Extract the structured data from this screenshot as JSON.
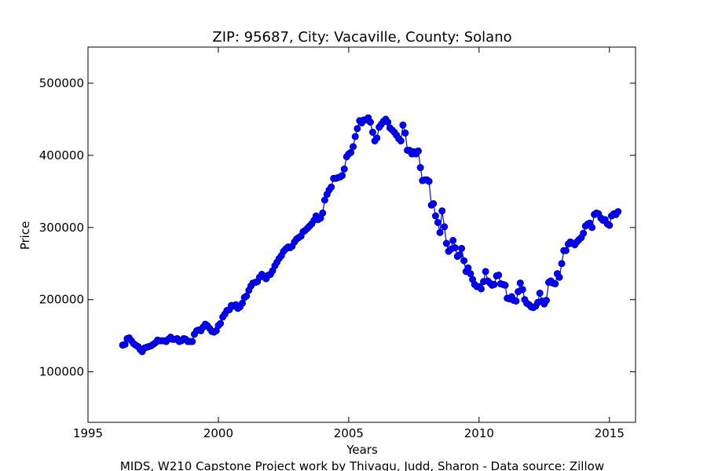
{
  "chart_data": {
    "type": "line",
    "title": "ZIP: 95687, City: Vacaville, County: Solano",
    "xlabel": "Years",
    "ylabel": "Price",
    "xlim": [
      1995,
      2016
    ],
    "ylim": [
      30000,
      550000
    ],
    "x_ticks": [
      1995,
      2000,
      2005,
      2010,
      2015
    ],
    "y_ticks": [
      100000,
      200000,
      300000,
      400000,
      500000
    ],
    "x_tick_labels": [
      "1995",
      "2000",
      "2005",
      "2010",
      "2015"
    ],
    "y_tick_labels": [
      "100000",
      "200000",
      "300000",
      "400000",
      "500000"
    ],
    "grid": false,
    "legend": "none",
    "marker": "circle",
    "colors": {
      "line": "#0000ff",
      "marker_fill": "#0000ff",
      "marker_edge": "#000080"
    },
    "series": [
      {
        "x": [
          1996.33,
          1996.42,
          1996.5,
          1996.58,
          1996.67,
          1996.75,
          1996.83,
          1996.92,
          1997.0,
          1997.08,
          1997.17,
          1997.25,
          1997.33,
          1997.42,
          1997.5,
          1997.58,
          1997.67,
          1997.75,
          1997.83,
          1997.92,
          1998.0,
          1998.08,
          1998.17,
          1998.25,
          1998.33,
          1998.42,
          1998.5,
          1998.58,
          1998.67,
          1998.75,
          1998.83,
          1998.92,
          1999.0,
          1999.08,
          1999.17,
          1999.25,
          1999.33,
          1999.42,
          1999.5,
          1999.58,
          1999.67,
          1999.75,
          1999.83,
          1999.92,
          2000.0,
          2000.08,
          2000.17,
          2000.25,
          2000.33,
          2000.42,
          2000.5,
          2000.58,
          2000.67,
          2000.75,
          2000.83,
          2000.92,
          2001.0,
          2001.08,
          2001.17,
          2001.25,
          2001.33,
          2001.42,
          2001.5,
          2001.58,
          2001.67,
          2001.75,
          2001.83,
          2001.92,
          2002.0,
          2002.08,
          2002.17,
          2002.25,
          2002.33,
          2002.42,
          2002.5,
          2002.58,
          2002.67,
          2002.75,
          2002.83,
          2002.92,
          2003.0,
          2003.08,
          2003.17,
          2003.25,
          2003.33,
          2003.42,
          2003.5,
          2003.58,
          2003.67,
          2003.75,
          2003.83,
          2003.92,
          2004.0,
          2004.08,
          2004.17,
          2004.25,
          2004.33,
          2004.42,
          2004.5,
          2004.58,
          2004.67,
          2004.75,
          2004.83,
          2004.92,
          2005.0,
          2005.08,
          2005.17,
          2005.25,
          2005.33,
          2005.42,
          2005.5,
          2005.58,
          2005.67,
          2005.75,
          2005.83,
          2005.92,
          2006.0,
          2006.08,
          2006.17,
          2006.25,
          2006.33,
          2006.42,
          2006.5,
          2006.58,
          2006.67,
          2006.75,
          2006.83,
          2006.92,
          2007.0,
          2007.08,
          2007.17,
          2007.25,
          2007.33,
          2007.42,
          2007.5,
          2007.58,
          2007.67,
          2007.75,
          2007.83,
          2007.92,
          2008.0,
          2008.08,
          2008.17,
          2008.25,
          2008.33,
          2008.42,
          2008.5,
          2008.58,
          2008.67,
          2008.75,
          2008.83,
          2008.92,
          2009.0,
          2009.08,
          2009.17,
          2009.25,
          2009.33,
          2009.42,
          2009.5,
          2009.58,
          2009.67,
          2009.75,
          2009.83,
          2009.92,
          2010.0,
          2010.08,
          2010.17,
          2010.25,
          2010.33,
          2010.42,
          2010.5,
          2010.58,
          2010.67,
          2010.75,
          2010.83,
          2010.92,
          2011.0,
          2011.08,
          2011.17,
          2011.25,
          2011.33,
          2011.42,
          2011.5,
          2011.58,
          2011.67,
          2011.75,
          2011.83,
          2011.92,
          2012.0,
          2012.08,
          2012.17,
          2012.25,
          2012.33,
          2012.42,
          2012.5,
          2012.58,
          2012.67,
          2012.75,
          2012.83,
          2012.92,
          2013.0,
          2013.08,
          2013.17,
          2013.25,
          2013.33,
          2013.42,
          2013.5,
          2013.58,
          2013.67,
          2013.75,
          2013.83,
          2013.92,
          2014.0,
          2014.08,
          2014.17,
          2014.25,
          2014.33,
          2014.42,
          2014.5,
          2014.58,
          2014.67,
          2014.75,
          2014.83,
          2014.92,
          2015.0,
          2015.08,
          2015.17,
          2015.25,
          2015.33
        ],
        "y": [
          137000,
          138000,
          146000,
          147000,
          143000,
          139000,
          137000,
          135000,
          131000,
          128000,
          133000,
          134000,
          135000,
          136000,
          138000,
          140000,
          144000,
          143000,
          143000,
          143000,
          142000,
          145000,
          148000,
          145000,
          145000,
          146000,
          142000,
          143000,
          146000,
          145000,
          142000,
          142000,
          142000,
          152000,
          157000,
          158000,
          157000,
          162000,
          166000,
          164000,
          160000,
          156000,
          155000,
          157000,
          164000,
          167000,
          176000,
          180000,
          185000,
          186000,
          192000,
          191000,
          193000,
          188000,
          190000,
          195000,
          203000,
          205000,
          213000,
          219000,
          223000,
          224000,
          225000,
          231000,
          235000,
          232000,
          229000,
          234000,
          235000,
          240000,
          247000,
          252000,
          257000,
          261000,
          267000,
          270000,
          273000,
          272000,
          274000,
          280000,
          284000,
          286000,
          288000,
          294000,
          296000,
          299000,
          302000,
          305000,
          310000,
          316000,
          311000,
          313000,
          320000,
          338000,
          346000,
          352000,
          356000,
          368000,
          368000,
          369000,
          370000,
          372000,
          381000,
          398000,
          402000,
          404000,
          412000,
          426000,
          437000,
          448000,
          445000,
          449000,
          449000,
          452000,
          446000,
          432000,
          420000,
          424000,
          439000,
          443000,
          447000,
          450000,
          446000,
          438000,
          435000,
          432000,
          428000,
          423000,
          420000,
          442000,
          431000,
          407000,
          407000,
          402000,
          405000,
          402000,
          406000,
          383000,
          365000,
          366000,
          366000,
          364000,
          331000,
          333000,
          316000,
          307000,
          293000,
          323000,
          301000,
          278000,
          267000,
          270000,
          282000,
          272000,
          260000,
          262000,
          271000,
          254000,
          239000,
          244000,
          236000,
          228000,
          221000,
          218000,
          218000,
          215000,
          225000,
          239000,
          226000,
          223000,
          220000,
          221000,
          233000,
          234000,
          222000,
          221000,
          220000,
          202000,
          201000,
          204000,
          199000,
          198000,
          211000,
          223000,
          214000,
          200000,
          195000,
          193000,
          190000,
          189000,
          191000,
          196000,
          209000,
          198000,
          194000,
          199000,
          224000,
          226000,
          223000,
          222000,
          236000,
          231000,
          250000,
          268000,
          268000,
          277000,
          280000,
          278000,
          276000,
          280000,
          283000,
          286000,
          292000,
          302000,
          305000,
          306000,
          300000,
          318000,
          320000,
          319000,
          313000,
          310000,
          311000,
          305000,
          303000,
          316000,
          319000,
          318000,
          322000
        ]
      }
    ]
  },
  "footer": {
    "text": "MIDS, W210 Capstone Project work by Thivagu, Judd, Sharon  -  Data source: Zillow"
  }
}
